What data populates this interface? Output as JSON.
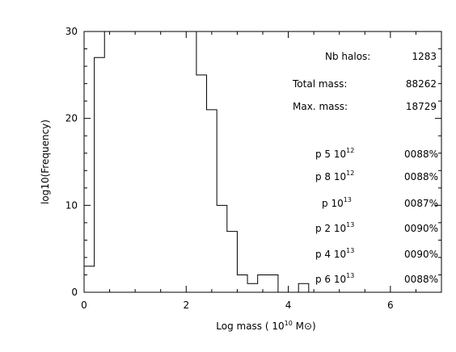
{
  "chart_data": {
    "type": "histogram",
    "xlabel": "Log mass ( 10^10 M⊙)",
    "ylabel": "log10(Frequency)",
    "xlim": [
      0,
      7
    ],
    "ylim": [
      0,
      30
    ],
    "x_ticks": [
      0,
      2,
      4,
      6
    ],
    "y_ticks": [
      0,
      10,
      20,
      30
    ],
    "grid": false,
    "bin_edges": [
      0.0,
      0.2,
      0.4,
      0.6,
      0.8,
      1.0,
      1.2,
      1.4,
      1.6,
      1.8,
      2.0,
      2.2,
      2.4,
      2.6,
      2.8,
      3.0,
      3.2,
      3.4,
      3.6,
      3.8,
      4.0,
      4.2,
      4.4,
      4.6,
      4.8,
      5.0,
      5.2
    ],
    "counts": [
      3,
      27,
      30,
      30,
      30,
      30,
      30,
      30,
      30,
      30,
      30,
      25,
      21,
      10,
      7,
      2,
      1,
      2,
      2,
      0,
      0,
      1,
      0,
      0,
      0,
      0
    ],
    "xlabel_parts": {
      "before": "Log mass ( ",
      "base": "10",
      "exp": "10",
      "unit": " M⊙)"
    },
    "stats": [
      {
        "label": "Nb halos:",
        "value": "1283"
      },
      {
        "label": "Total mass:",
        "value": "88262"
      },
      {
        "label": "Max. mass:",
        "value": "18729"
      }
    ],
    "percent_rows": [
      {
        "prefix": "p 5 ",
        "base": "10",
        "exp": "12",
        "value": "0088%"
      },
      {
        "prefix": "p 8 ",
        "base": "10",
        "exp": "12",
        "value": "0088%"
      },
      {
        "prefix": "p ",
        "base": "10",
        "exp": "13",
        "value": "0087%"
      },
      {
        "prefix": "p 2 ",
        "base": "10",
        "exp": "13",
        "value": "0090%"
      },
      {
        "prefix": "p 4 ",
        "base": "10",
        "exp": "13",
        "value": "0090%"
      },
      {
        "prefix": "p 6 ",
        "base": "10",
        "exp": "13",
        "value": "0088%"
      }
    ]
  }
}
